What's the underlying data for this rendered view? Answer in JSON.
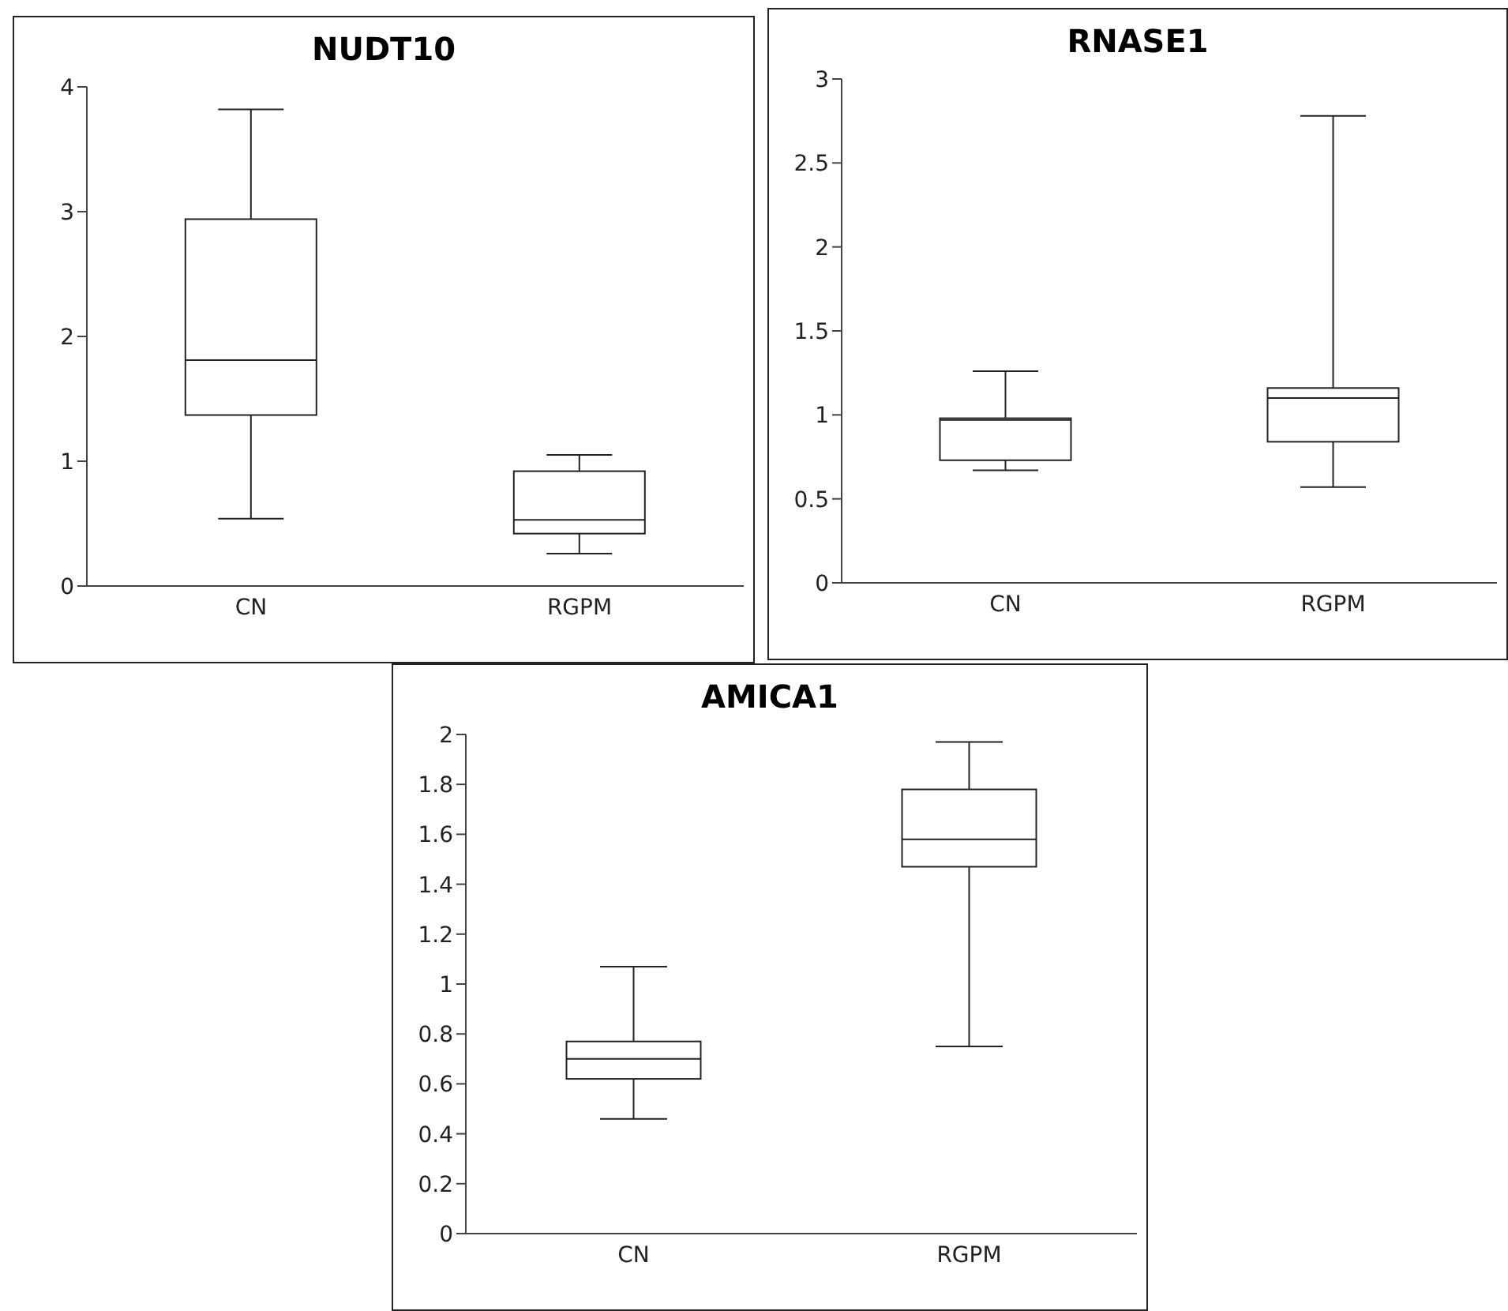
{
  "chart_data": [
    {
      "type": "box",
      "title": "NUDT10",
      "categories": [
        "CN",
        "RGPM"
      ],
      "ylim": [
        0,
        4
      ],
      "yticks": [
        0,
        1,
        2,
        3,
        4
      ],
      "boxes": [
        {
          "low": 0.54,
          "q1": 1.37,
          "median": 1.81,
          "q3": 2.94,
          "high": 3.82
        },
        {
          "low": 0.26,
          "q1": 0.42,
          "median": 0.53,
          "q3": 0.92,
          "high": 1.05
        }
      ]
    },
    {
      "type": "box",
      "title": "RNASE1",
      "categories": [
        "CN",
        "RGPM"
      ],
      "ylim": [
        0,
        3
      ],
      "yticks": [
        0,
        0.5,
        1,
        1.5,
        2,
        2.5,
        3
      ],
      "boxes": [
        {
          "low": 0.67,
          "q1": 0.73,
          "median": 0.97,
          "q3": 0.98,
          "high": 1.26
        },
        {
          "low": 0.57,
          "q1": 0.84,
          "median": 1.1,
          "q3": 1.16,
          "high": 2.78
        }
      ]
    },
    {
      "type": "box",
      "title": "AMICA1",
      "categories": [
        "CN",
        "RGPM"
      ],
      "ylim": [
        0,
        2
      ],
      "yticks": [
        0,
        0.2,
        0.4,
        0.6,
        0.8,
        1,
        1.2,
        1.4,
        1.6,
        1.8,
        2
      ],
      "boxes": [
        {
          "low": 0.46,
          "q1": 0.62,
          "median": 0.7,
          "q3": 0.77,
          "high": 1.07
        },
        {
          "low": 0.75,
          "q1": 1.47,
          "median": 1.58,
          "q3": 1.78,
          "high": 1.97
        }
      ]
    }
  ]
}
